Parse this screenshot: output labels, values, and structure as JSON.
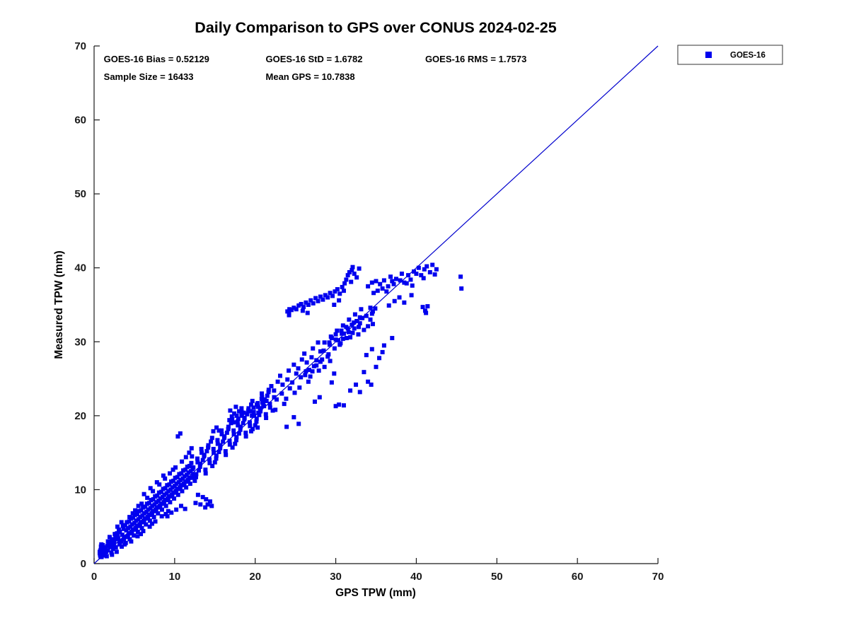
{
  "title": "Daily Comparison to GPS over CONUS 2024-02-25",
  "legend": {
    "label": "GOES-16"
  },
  "stats": {
    "bias": 0.52129,
    "std": 1.6782,
    "rms": 1.7573,
    "sample_size": 16433,
    "mean_gps": 10.7838
  },
  "colors": {
    "marker": "#0000EE",
    "reference_line": "#0000CD",
    "axis": "#1a1a1a",
    "background": "#ffffff"
  },
  "chart_data": {
    "type": "scatter",
    "title": "Daily Comparison to GPS over CONUS 2024-02-25",
    "xlabel": "GPS TPW (mm)",
    "ylabel": "Measured TPW (mm)",
    "xlim": [
      0,
      70
    ],
    "ylim": [
      0,
      70
    ],
    "xticks": [
      0,
      10,
      20,
      30,
      40,
      50,
      60,
      70
    ],
    "yticks": [
      0,
      10,
      20,
      30,
      40,
      50,
      60,
      70
    ],
    "grid": false,
    "legend_position": "top-right-outside",
    "reference_line": {
      "from": [
        0,
        0
      ],
      "to": [
        70,
        70
      ],
      "color": "#0000CD",
      "meaning": "1:1 line"
    },
    "annotations": [
      {
        "text": "GOES-16 Bias = 0.52129",
        "x": 1.2,
        "y": 67.8
      },
      {
        "text": "GOES-16 StD = 1.6782",
        "x": 21.3,
        "y": 67.8
      },
      {
        "text": "GOES-16 RMS = 1.7573",
        "x": 41.1,
        "y": 67.8
      },
      {
        "text": "Sample Size = 16433",
        "x": 1.2,
        "y": 65.4
      },
      {
        "text": "Mean GPS = 10.7838",
        "x": 21.3,
        "y": 65.4
      }
    ],
    "series": [
      {
        "name": "GOES-16",
        "marker": "square",
        "color": "#0000EE",
        "xy": [
          1.0,
          1.4,
          0.9,
          1.9,
          1.15,
          1.1,
          1.3,
          2.1,
          0.7,
          1.6,
          1.07,
          2.5,
          0.93,
          0.9,
          1.22,
          1.7,
          1.5,
          1.6,
          1.65,
          2.4,
          1.35,
          1.2,
          1.8,
          2.7,
          1.2,
          2.0,
          1.57,
          1.0,
          1.43,
          2.2,
          1.72,
          3.0,
          2.0,
          2.3,
          2.15,
          1.5,
          1.85,
          2.9,
          2.3,
          3.3,
          1.7,
          1.8,
          2.07,
          2.6,
          1.93,
          3.6,
          2.22,
          1.2,
          2.5,
          2.8,
          2.65,
          3.5,
          2.35,
          2.0,
          2.8,
          1.6,
          2.2,
          3.1,
          2.57,
          4.0,
          2.43,
          2.4,
          2.72,
          3.3,
          3.0,
          3.4,
          3.15,
          2.6,
          2.85,
          4.1,
          3.3,
          3.0,
          2.7,
          2.2,
          3.07,
          4.6,
          2.93,
          3.8,
          3.22,
          2.9,
          3.5,
          3.9,
          3.65,
          4.7,
          3.35,
          3.1,
          3.8,
          2.6,
          3.2,
          4.3,
          3.57,
          5.1,
          3.43,
          2.3,
          3.72,
          3.6,
          4.0,
          4.5,
          4.15,
          3.6,
          3.85,
          5.2,
          4.3,
          4.1,
          3.7,
          3.2,
          4.07,
          5.6,
          3.93,
          2.8,
          4.22,
          4.8,
          4.5,
          5.0,
          4.65,
          4.1,
          4.35,
          5.7,
          4.8,
          4.6,
          4.2,
          3.7,
          4.57,
          6.1,
          4.43,
          3.3,
          4.72,
          5.3,
          5.0,
          5.5,
          5.15,
          4.6,
          4.85,
          6.2,
          5.3,
          5.1,
          4.7,
          4.2,
          5.07,
          6.6,
          4.93,
          3.8,
          5.22,
          5.8,
          5.5,
          6.0,
          5.65,
          5.1,
          5.35,
          6.7,
          5.8,
          5.6,
          5.2,
          4.7,
          5.57,
          7.1,
          5.43,
          4.3,
          5.72,
          6.3,
          6.0,
          6.5,
          6.15,
          5.6,
          5.85,
          7.2,
          6.3,
          6.1,
          5.7,
          5.2,
          6.07,
          7.6,
          5.93,
          4.8,
          6.22,
          6.8,
          6.5,
          7.0,
          6.65,
          6.1,
          6.35,
          7.7,
          6.8,
          6.6,
          6.2,
          5.7,
          6.57,
          8.1,
          6.43,
          5.3,
          6.72,
          7.3,
          7.0,
          7.5,
          7.15,
          6.6,
          6.85,
          8.2,
          7.3,
          7.1,
          6.7,
          6.2,
          7.07,
          8.6,
          6.93,
          5.8,
          7.22,
          7.8,
          7.5,
          8.0,
          7.65,
          7.1,
          7.35,
          8.7,
          7.8,
          7.6,
          7.2,
          6.7,
          7.57,
          9.1,
          7.43,
          6.3,
          7.72,
          8.3,
          8.0,
          8.5,
          8.15,
          7.6,
          7.85,
          9.2,
          8.3,
          8.1,
          7.7,
          7.2,
          8.07,
          9.6,
          7.93,
          6.8,
          8.22,
          8.8,
          8.5,
          9.0,
          8.65,
          8.1,
          8.35,
          9.7,
          8.8,
          8.6,
          8.2,
          7.7,
          8.57,
          10.1,
          8.43,
          7.3,
          8.72,
          9.3,
          9.0,
          9.5,
          9.15,
          8.6,
          8.85,
          10.2,
          9.3,
          9.1,
          8.7,
          8.2,
          9.07,
          10.6,
          8.93,
          7.8,
          9.22,
          9.8,
          9.5,
          10.0,
          9.65,
          9.1,
          9.35,
          10.7,
          9.8,
          9.6,
          9.2,
          8.7,
          9.57,
          11.1,
          9.43,
          8.3,
          9.72,
          10.3,
          10.0,
          10.5,
          10.15,
          9.6,
          9.85,
          11.2,
          10.3,
          10.1,
          9.7,
          9.2,
          10.07,
          11.6,
          9.93,
          8.8,
          10.22,
          10.8,
          10.5,
          11.0,
          10.65,
          10.1,
          10.35,
          11.7,
          10.8,
          10.6,
          10.2,
          9.7,
          10.57,
          12.1,
          10.43,
          9.3,
          10.72,
          11.3,
          11.0,
          11.5,
          11.15,
          10.6,
          10.85,
          12.2,
          11.3,
          11.1,
          10.7,
          10.2,
          11.07,
          12.6,
          10.93,
          9.8,
          11.22,
          11.8,
          11.5,
          12.0,
          11.65,
          11.1,
          11.35,
          12.7,
          11.8,
          11.6,
          11.2,
          10.7,
          11.57,
          13.1,
          11.43,
          10.3,
          11.72,
          12.3,
          12.0,
          12.5,
          12.15,
          11.6,
          11.85,
          13.2,
          12.3,
          12.1,
          11.7,
          11.2,
          12.07,
          13.6,
          11.93,
          10.8,
          12.22,
          12.8,
          12.5,
          11.2,
          12.68,
          12.1,
          12.32,
          13.0,
          12.85,
          13.7,
          12.15,
          14.5,
          13.0,
          12.6,
          13.18,
          13.5,
          12.82,
          14.2,
          13.35,
          15.0,
          12.65,
          11.7,
          13.5,
          14.0,
          13.68,
          14.7,
          13.32,
          15.5,
          13.85,
          12.2,
          13.15,
          13.1,
          14.0,
          15.2,
          14.18,
          16.0,
          13.82,
          12.7,
          14.35,
          13.6,
          13.65,
          14.5,
          14.5,
          16.5,
          14.68,
          13.2,
          14.32,
          14.1,
          14.85,
          15.0,
          14.15,
          15.7,
          15.0,
          13.7,
          15.18,
          14.6,
          14.82,
          15.5,
          15.35,
          16.2,
          14.65,
          17.0,
          15.5,
          15.1,
          15.68,
          16.0,
          15.32,
          16.7,
          15.85,
          17.5,
          15.15,
          14.2,
          16.0,
          16.5,
          16.18,
          17.2,
          15.82,
          18.0,
          16.35,
          14.7,
          15.65,
          15.6,
          16.5,
          17.7,
          16.68,
          18.5,
          16.32,
          15.2,
          16.85,
          16.1,
          16.15,
          17.0,
          17.0,
          19.0,
          17.18,
          15.7,
          16.82,
          16.6,
          17.35,
          17.5,
          16.65,
          18.2,
          17.5,
          16.2,
          17.68,
          17.1,
          17.32,
          18.0,
          17.85,
          18.7,
          17.15,
          19.5,
          18.0,
          17.6,
          18.18,
          18.5,
          17.82,
          19.2,
          18.35,
          20.0,
          17.65,
          16.7,
          18.5,
          19.0,
          18.68,
          19.7,
          18.32,
          20.5,
          18.85,
          17.2,
          18.15,
          18.1,
          19.0,
          20.2,
          19.18,
          21.0,
          18.82,
          17.7,
          19.35,
          18.6,
          18.65,
          19.5,
          19.5,
          21.5,
          19.68,
          18.2,
          19.32,
          19.1,
          19.85,
          20.0,
          19.15,
          20.7,
          20.0,
          18.7,
          20.18,
          19.6,
          19.82,
          20.5,
          20.35,
          21.2,
          19.65,
          22.0,
          20.5,
          20.1,
          20.68,
          21.0,
          20.32,
          21.7,
          20.85,
          22.5,
          20.15,
          19.2,
          21.0,
          21.5,
          21.18,
          22.2,
          20.82,
          23.0,
          21.35,
          19.7,
          20.65,
          20.6,
          21.5,
          22.7,
          21.68,
          23.5,
          21.32,
          20.2,
          21.85,
          21.1,
          21.15,
          22.0,
          22.0,
          24.0,
          22.18,
          20.7,
          21.82,
          21.6,
          22.35,
          22.5,
          21.65,
          23.2,
          22.5,
          20.8,
          22.66,
          22.2,
          22.34,
          23.4,
          22.8,
          24.6,
          23.3,
          23.0,
          23.4,
          24.2,
          23.1,
          25.4,
          23.6,
          21.6,
          24.0,
          24.9,
          24.16,
          26.1,
          23.84,
          22.3,
          24.3,
          23.7,
          24.8,
          26.9,
          24.9,
          23.1,
          24.6,
          24.5,
          25.1,
          25.7,
          25.5,
          23.8,
          25.66,
          25.2,
          25.34,
          26.4,
          25.8,
          27.6,
          26.3,
          26.0,
          26.4,
          27.2,
          26.1,
          28.4,
          26.6,
          24.6,
          27.0,
          27.9,
          27.16,
          29.1,
          26.84,
          25.3,
          27.3,
          26.7,
          27.8,
          29.9,
          27.9,
          26.1,
          27.6,
          27.5,
          28.1,
          28.7,
          28.5,
          28.8,
          28.6,
          29.9,
          28.3,
          27.6,
          29.25,
          29.6,
          29.4,
          30.7,
          29.1,
          28.3,
          30.0,
          30.3,
          30.15,
          31.5,
          29.85,
          29.1,
          30.75,
          31.1,
          30.9,
          32.2,
          30.6,
          29.8,
          31.5,
          31.8,
          31.65,
          33.0,
          31.35,
          30.5,
          32.25,
          32.6,
          32.4,
          33.7,
          32.1,
          31.2,
          33.0,
          33.3,
          33.15,
          34.4,
          32.85,
          32.0,
          24.2,
          33.6,
          24.2,
          34.0,
          24.25,
          34.4,
          24.0,
          34.1,
          24.5,
          34.3,
          24.8,
          34.6,
          25.1,
          34.4,
          25.4,
          34.9,
          25.7,
          35.1,
          26.0,
          34.7,
          26.3,
          35.3,
          26.6,
          35.0,
          26.9,
          35.6,
          27.2,
          35.2,
          27.5,
          35.9,
          27.8,
          35.5,
          28.1,
          36.1,
          28.4,
          35.7,
          28.7,
          36.3,
          26.5,
          33.9,
          25.9,
          34.2,
          29.0,
          36.0,
          29.3,
          36.6,
          29.6,
          36.2,
          29.9,
          36.8,
          30.2,
          37.1,
          30.5,
          36.5,
          30.8,
          37.4,
          31.1,
          37.9,
          31.3,
          38.4,
          31.5,
          39.0,
          31.7,
          39.4,
          32.0,
          39.7,
          32.3,
          39.2,
          32.6,
          38.7,
          31.9,
          38.1,
          30.4,
          35.6,
          29.8,
          35.0,
          31.0,
          36.9,
          32.9,
          39.9,
          32.1,
          40.1,
          29.5,
          30.5,
          30.0,
          31.0,
          30.3,
          30.2,
          30.7,
          31.5,
          31.0,
          31.1,
          31.3,
          32.0,
          31.6,
          31.3,
          32.0,
          32.3,
          32.3,
          31.8,
          32.6,
          32.8,
          33.0,
          32.5,
          33.3,
          33.2,
          30.5,
          29.6,
          31.8,
          30.6,
          32.8,
          31.0,
          33.5,
          31.6,
          34.0,
          32.1,
          34.3,
          33.0,
          34.6,
          32.4,
          29.2,
          29.9,
          30.9,
          30.4,
          33.8,
          33.5,
          34.0,
          37.5,
          34.5,
          38.0,
          35.0,
          38.2,
          35.2,
          36.9,
          35.5,
          37.8,
          36.0,
          38.3,
          36.5,
          37.5,
          36.8,
          38.8,
          37.0,
          38.2,
          37.5,
          38.5,
          38.0,
          38.3,
          38.2,
          39.2,
          38.5,
          38.0,
          39.0,
          39.0,
          39.3,
          38.4,
          39.7,
          39.5,
          40.0,
          39.2,
          40.3,
          40.0,
          40.6,
          39.0,
          41.0,
          39.8,
          41.3,
          40.2,
          41.7,
          39.4,
          42.0,
          40.4,
          42.3,
          39.1,
          35.8,
          37.2,
          37.2,
          37.8,
          38.8,
          37.9,
          34.7,
          36.6,
          36.3,
          36.8,
          39.5,
          37.6,
          40.9,
          38.6,
          42.5,
          39.8,
          37.3,
          35.5,
          37.9,
          36.0,
          38.5,
          35.3,
          36.6,
          34.9,
          39.4,
          36.3,
          34.3,
          34.6,
          34.6,
          34.1,
          34.9,
          34.5,
          34.5,
          33.8,
          40.8,
          34.7,
          41.1,
          34.2,
          41.4,
          34.8,
          41.2,
          33.9,
          45.5,
          38.8,
          45.6,
          37.2,
          30.0,
          21.3,
          30.4,
          21.5,
          31.0,
          21.4,
          33.0,
          23.2,
          34.0,
          24.6,
          34.4,
          24.2,
          35.0,
          26.6,
          35.4,
          27.8,
          29.5,
          24.5,
          28.0,
          22.5,
          25.4,
          18.9,
          24.8,
          19.8,
          23.9,
          18.5,
          36.0,
          29.5,
          37.0,
          30.5,
          35.8,
          28.6,
          33.5,
          25.9,
          32.5,
          24.2,
          31.8,
          23.4,
          33.8,
          28.2,
          34.5,
          29.0,
          29.8,
          25.7,
          27.4,
          21.9,
          26.2,
          25.5,
          26.7,
          26.2,
          27.1,
          26.0,
          27.6,
          26.8,
          28.1,
          27.3,
          28.6,
          26.6,
          29.0,
          28.0,
          29.3,
          27.4,
          16.8,
          19.4,
          17.1,
          19.9,
          17.4,
          20.3,
          17.7,
          20.0,
          18.0,
          20.6,
          18.3,
          20.2,
          17.3,
          19.1,
          17.9,
          19.6,
          18.3,
          21.0,
          18.6,
          20.4,
          17.6,
          21.2,
          16.9,
          20.7,
          19.4,
          20.6,
          19.8,
          21.1,
          20.2,
          21.5,
          20.6,
          21.0,
          20.9,
          21.8,
          19.6,
          20.0,
          20.4,
          20.4,
          21.1,
          21.3,
          21.4,
          22.0,
          20.8,
          22.3,
          19.5,
          17.9,
          20.3,
          18.4,
          14.8,
          17.9,
          15.2,
          18.4,
          15.5,
          18.0,
          10.4,
          17.2,
          10.7,
          17.6,
          4.4,
          6.3,
          5.1,
          7.2,
          5.9,
          8.1,
          6.6,
          8.9,
          7.3,
          9.8,
          8.1,
          10.7,
          8.8,
          11.5,
          9.4,
          12.2,
          10.1,
          13.0,
          10.9,
          13.8,
          11.4,
          14.4,
          6.2,
          9.4,
          7.0,
          10.2,
          7.8,
          11.0,
          8.6,
          11.9,
          9.8,
          12.7,
          5.5,
          7.8,
          4.8,
          6.8,
          4.6,
          3.0,
          5.4,
          3.7,
          6.1,
          4.4,
          6.9,
          5.0,
          7.6,
          5.7,
          8.4,
          6.4,
          9.2,
          7.1,
          5.8,
          4.0,
          7.2,
          5.4,
          8.9,
          6.7,
          2.9,
          5.0,
          3.4,
          5.6,
          11.8,
          15.0,
          12.1,
          15.6,
          9.6,
          6.9,
          10.2,
          7.3,
          10.8,
          7.8,
          11.3,
          7.4,
          12.6,
          8.2,
          9.1,
          6.4,
          13.2,
          8.0,
          12.9,
          9.3,
          13.5,
          9.0,
          13.8,
          7.6,
          14.1,
          8.0,
          14.4,
          8.4,
          13.9,
          8.7,
          14.6,
          7.8,
          0.75,
          1.1,
          0.8,
          1.8,
          0.85,
          2.3,
          0.7,
          1.4,
          0.9,
          2.6,
          0.82,
          0.9
        ]
      }
    ]
  }
}
